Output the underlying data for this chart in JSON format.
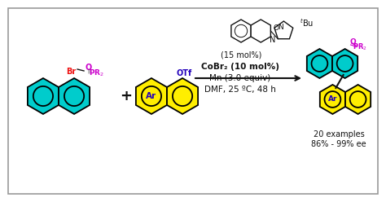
{
  "bg_color": "#ffffff",
  "border_color": "#999999",
  "cyan_color": "#00cccc",
  "yellow_color": "#ffee00",
  "red_color": "#ee1111",
  "magenta_color": "#cc00cc",
  "blue_color": "#2200bb",
  "dark_color": "#111111",
  "catalyst_text": "(15 mol%)",
  "cobr2_text": "CoBr₂ (10 mol%)",
  "mn_text": "Mn (3.0 equiv)",
  "dmf_text": "DMF, 25 ºC, 48 h",
  "product_text1": "20 examples",
  "product_text2": "86% - 99% ee"
}
